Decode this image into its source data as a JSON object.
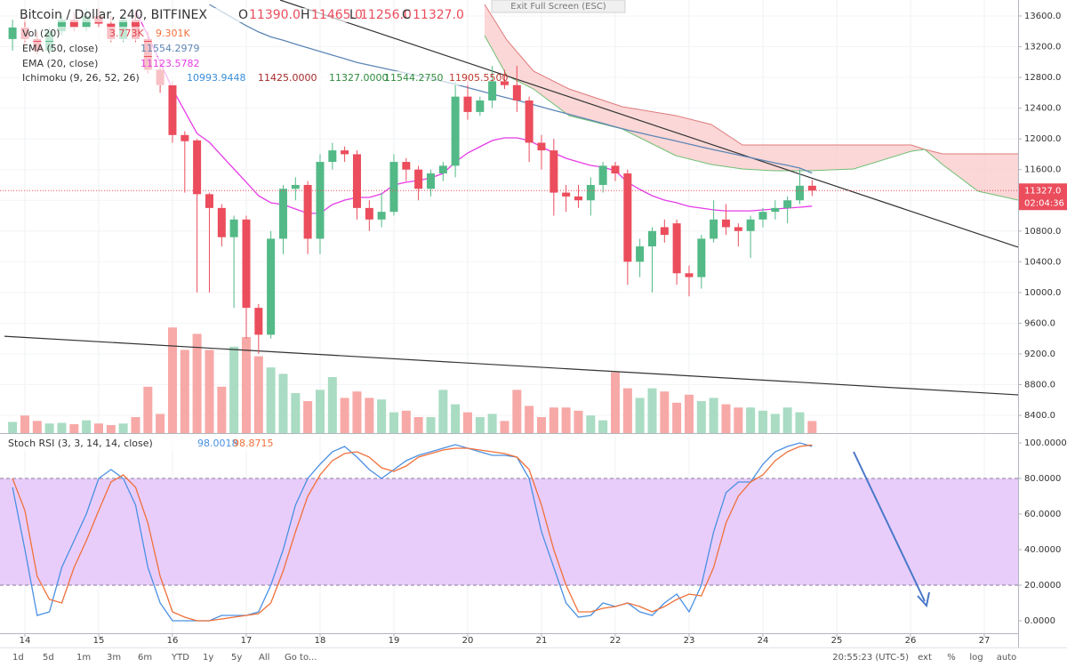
{
  "ui": {
    "tooltip": "Exit Full Screen (ESC)",
    "toolbar": [
      "1d",
      "5d",
      "1m",
      "3m",
      "6m",
      "YTD",
      "1y",
      "5y",
      "All",
      "Go to..."
    ],
    "clock": "20:55:23 (UTC-5)",
    "options": [
      "ext",
      "%",
      "log",
      "auto"
    ]
  },
  "chart_data": [
    {
      "type": "candlestick",
      "title": "Bitcoin / Dollar, 240, BITFINEX",
      "ohlc": [
        {
          "key": "O",
          "value": "11390.0"
        },
        {
          "key": "H",
          "value": "11465.0"
        },
        {
          "key": "L",
          "value": "11256.0"
        },
        {
          "key": "C",
          "value": "11327.0"
        }
      ],
      "up_color": "#53b987",
      "down_color": "#eb4d5c",
      "x": [
        13.833,
        14.0,
        14.167,
        14.333,
        14.5,
        14.667,
        14.833,
        15.0,
        15.167,
        15.333,
        15.5,
        15.667,
        15.833,
        16.0,
        16.167,
        16.333,
        16.5,
        16.667,
        16.833,
        17.0,
        17.167,
        17.333,
        17.5,
        17.667,
        17.833,
        18.0,
        18.167,
        18.333,
        18.5,
        18.667,
        18.833,
        19.0,
        19.167,
        19.333,
        19.5,
        19.667,
        19.833,
        20.0,
        20.167,
        20.333,
        20.5,
        20.667,
        20.833,
        21.0,
        21.167,
        21.333,
        21.5,
        21.667,
        21.833,
        22.0,
        22.167,
        22.333,
        22.5,
        22.667,
        22.833,
        23.0,
        23.167,
        23.333,
        23.5,
        23.667,
        23.833,
        24.0,
        24.167,
        24.333,
        24.5,
        24.667
      ],
      "open": [
        13300,
        13450,
        13300,
        13150,
        13400,
        13550,
        13450,
        13600,
        13500,
        13300,
        13550,
        13300,
        12900,
        12700,
        12050,
        11980,
        11280,
        11100,
        10720,
        10950,
        9800,
        9450,
        10700,
        11350,
        11400,
        10700,
        11700,
        11850,
        11800,
        11100,
        10950,
        11050,
        11700,
        11600,
        11350,
        11550,
        11650,
        12550,
        12350,
        12500,
        12750,
        12700,
        12500,
        11950,
        11850,
        11300,
        11250,
        11200,
        11400,
        11650,
        11550,
        10400,
        10600,
        10850,
        10900,
        10250,
        10200,
        10700,
        10950,
        10850,
        10800,
        10950,
        11050,
        11100,
        11200,
        11390
      ],
      "high": [
        13550,
        13600,
        13400,
        13450,
        13600,
        13650,
        13700,
        13700,
        13600,
        13600,
        13650,
        13400,
        13000,
        12750,
        12100,
        12000,
        11300,
        11150,
        11000,
        11000,
        9850,
        10800,
        11400,
        11500,
        11450,
        11800,
        11950,
        11900,
        11850,
        11200,
        11300,
        11800,
        11750,
        11650,
        11600,
        11700,
        12750,
        12800,
        12550,
        12950,
        12900,
        12950,
        12550,
        12050,
        12000,
        11400,
        11400,
        11500,
        11700,
        11700,
        11600,
        10700,
        10850,
        10950,
        10950,
        10350,
        10750,
        11200,
        11150,
        10900,
        11000,
        11100,
        11200,
        11250,
        11600,
        11465
      ],
      "low": [
        13150,
        13200,
        13100,
        13100,
        13350,
        13400,
        13400,
        13450,
        13250,
        13250,
        13250,
        12850,
        12600,
        11950,
        11300,
        10000,
        10000,
        10600,
        9800,
        9400,
        9200,
        9400,
        10500,
        11200,
        10500,
        10500,
        11600,
        11700,
        10950,
        10800,
        10850,
        11000,
        11450,
        11200,
        11250,
        11450,
        11500,
        12250,
        12300,
        12400,
        12650,
        12350,
        11700,
        11600,
        11000,
        11050,
        11100,
        11000,
        11300,
        11450,
        10100,
        10200,
        10000,
        10650,
        10100,
        9950,
        10050,
        10650,
        10750,
        10600,
        10450,
        10850,
        10950,
        10900,
        11150,
        11256
      ],
      "close": [
        13450,
        13300,
        13150,
        13400,
        13550,
        13450,
        13600,
        13500,
        13300,
        13550,
        13300,
        12900,
        12700,
        12050,
        11970,
        11280,
        11100,
        10720,
        10950,
        9800,
        9450,
        10700,
        11350,
        11400,
        10700,
        11700,
        11850,
        11800,
        11100,
        10950,
        11050,
        11700,
        11600,
        11350,
        11550,
        11650,
        12550,
        12350,
        12500,
        12750,
        12700,
        12500,
        11950,
        11850,
        11300,
        11250,
        11200,
        11400,
        11650,
        11550,
        10400,
        10600,
        10800,
        10750,
        10250,
        10200,
        10700,
        10950,
        10850,
        10800,
        10950,
        11050,
        11100,
        11200,
        11390,
        11327
      ],
      "countdown": "02:04:36",
      "volume": {
        "name": "Vol (20)",
        "legend": [
          "3.773K",
          "9.301K"
        ],
        "up_color": "#a9dcc3",
        "down_color": "#f7a9a7",
        "values": [
          3.5,
          5.5,
          3.8,
          3,
          3.2,
          2.8,
          4,
          3,
          2.5,
          3,
          5,
          14.5,
          6,
          33,
          26,
          31,
          26,
          14.5,
          27,
          30,
          24,
          20.5,
          18.5,
          12.5,
          10,
          13.5,
          17.5,
          11,
          13,
          11,
          10.5,
          6.5,
          7,
          5,
          5,
          13.5,
          9,
          6.5,
          5,
          6,
          3.8,
          13.5,
          8.5,
          5,
          8,
          8,
          7,
          5.5,
          4,
          19,
          14,
          11,
          14,
          13,
          9.5,
          12,
          10,
          11,
          9,
          8,
          8,
          7,
          6,
          8,
          6.5,
          3.773
        ]
      },
      "series": [
        {
          "name": "EMA (50, close)",
          "color": "#5d86b5",
          "values": [
            null,
            null,
            null,
            null,
            null,
            null,
            null,
            null,
            null,
            null,
            null,
            null,
            null,
            null,
            null,
            null,
            13750,
            13658,
            13565,
            13473,
            13392,
            13328,
            13283,
            13234,
            13185,
            13137,
            13090,
            13044,
            12995,
            12960,
            12924,
            12891,
            12855,
            12820,
            12784,
            12748,
            12710,
            12668,
            12626,
            12583,
            12541,
            12502,
            12460,
            12416,
            12372,
            12330,
            12286,
            12245,
            12201,
            12157,
            12115,
            12078,
            12041,
            12006,
            11969,
            11932,
            11895,
            11858,
            11826,
            11791,
            11755,
            11720,
            11686,
            11655,
            11620,
            11554.2979
          ]
        },
        {
          "name": "EMA (20, close)",
          "color": "#e63ce6",
          "values": [
            null,
            null,
            null,
            null,
            null,
            null,
            null,
            null,
            null,
            null,
            13670,
            13345,
            12998,
            12650,
            12360,
            12070,
            11955,
            11780,
            11608,
            11435,
            11260,
            11168,
            11145,
            11087,
            11030,
            11030,
            11145,
            11203,
            11237,
            11237,
            11284,
            11400,
            11435,
            11458,
            11492,
            11550,
            11700,
            11816,
            11897,
            11978,
            12013,
            12013,
            11978,
            11897,
            11816,
            11747,
            11700,
            11654,
            11631,
            11585,
            11435,
            11342,
            11260,
            11203,
            11168,
            11121,
            11098,
            11075,
            11063,
            11063,
            11063,
            11075,
            11087,
            11098,
            11110,
            11123.5782
          ]
        }
      ],
      "ichimoku": {
        "name": "Ichimoku (9, 26, 52, 26)",
        "legend": [
          {
            "text": "10993.9448",
            "color": "#3a8fd9"
          },
          {
            "text": "11425.0000",
            "color": "#a52a2a"
          },
          {
            "text": "11327.0000",
            "color": "#2e8b3e"
          },
          {
            "text": "11544.2750",
            "color": "#2e8b3e"
          },
          {
            "text": "11905.5500",
            "color": "#c0392b"
          }
        ],
        "cloud_color": "#f9c9c9",
        "span_a_color": "#6fbf73",
        "span_b_color": "#e07b7b",
        "x": [
          20.229,
          20.53,
          20.892,
          21.373,
          22.096,
          22.819,
          23.301,
          23.723,
          24.145,
          24.627,
          25.229,
          26.012,
          26.193,
          26.434,
          26.916,
          27.458
        ],
        "span_a": [
          13345,
          12824,
          12650,
          12303,
          12129,
          11782,
          11666,
          11608,
          11585,
          11585,
          11608,
          11840,
          11863,
          11666,
          11319,
          11203
        ],
        "span_b": [
          13751,
          13287,
          12882,
          12650,
          12419,
          12303,
          12187,
          11921,
          11921,
          11921,
          11921,
          11921,
          11863,
          11805,
          11805,
          11805
        ]
      },
      "trendlines": [
        {
          "x": [
            17.458,
            27.458
          ],
          "y": [
            13808,
            10590
          ]
        },
        {
          "x": [
            13.723,
            27.458
          ],
          "y": [
            9430,
            8667
          ]
        }
      ],
      "xlim": [
        13.663,
        27.458
      ],
      "xticks": [
        14,
        15,
        16,
        17,
        18,
        19,
        20,
        21,
        22,
        23,
        24,
        25,
        26,
        27
      ],
      "ylim": [
        8169,
        13808
      ],
      "yticks": [
        {
          "value": 8400,
          "label": "8400.0"
        },
        {
          "value": 8800,
          "label": "8800.0"
        },
        {
          "value": 9200,
          "label": "9200.0"
        },
        {
          "value": 9600,
          "label": "9600.0"
        },
        {
          "value": 10000,
          "label": "10000.0"
        },
        {
          "value": 10400,
          "label": "10400.0"
        },
        {
          "value": 10800,
          "label": "10800.0"
        },
        {
          "value": 11200,
          "label": "11200.0"
        },
        {
          "value": 11600,
          "label": "11600.0"
        },
        {
          "value": 12000,
          "label": "12000.0"
        },
        {
          "value": 12400,
          "label": "12400.0"
        },
        {
          "value": 12800,
          "label": "12800.0"
        },
        {
          "value": 13200,
          "label": "13200.0"
        },
        {
          "value": 13600,
          "label": "13600.0"
        }
      ],
      "grid": true
    },
    {
      "type": "line",
      "title": "Stoch RSI (3, 3, 14, 14, close)",
      "series": [
        {
          "color": "#4a90e2",
          "values": [
            75,
            40,
            3,
            5,
            30,
            45,
            60,
            80,
            85,
            80,
            65,
            30,
            10,
            0,
            0,
            0,
            0,
            3,
            3,
            3,
            5,
            20,
            40,
            65,
            80,
            88,
            95,
            98,
            92,
            85,
            80,
            85,
            90,
            93,
            95,
            97,
            99,
            97,
            95,
            93,
            93,
            92,
            80,
            50,
            30,
            10,
            2,
            3,
            10,
            8,
            10,
            5,
            3,
            10,
            15,
            5,
            20,
            50,
            72,
            78,
            78,
            88,
            95,
            98,
            100,
            98.0018
          ]
        },
        {
          "color": "#f0703a",
          "values": [
            80,
            62,
            25,
            12,
            10,
            30,
            45,
            62,
            78,
            82,
            75,
            55,
            25,
            5,
            2,
            0,
            0,
            1,
            2,
            3,
            4,
            10,
            28,
            50,
            70,
            82,
            90,
            94,
            95,
            92,
            86,
            84,
            87,
            92,
            94,
            96,
            97,
            97,
            96,
            95,
            94,
            92,
            85,
            65,
            40,
            20,
            5,
            5,
            7,
            8,
            10,
            8,
            5,
            8,
            12,
            15,
            14,
            30,
            55,
            70,
            78,
            82,
            90,
            95,
            98,
            98.8715
          ]
        }
      ],
      "band": [
        20,
        80
      ],
      "band_color": "#e8cdfb",
      "ylim": [
        -7,
        104
      ],
      "yticks": [
        {
          "value": 0,
          "label": "0.0000"
        },
        {
          "value": 20,
          "label": "20.0000"
        },
        {
          "value": 40,
          "label": "40.0000"
        },
        {
          "value": 60,
          "label": "60.0000"
        },
        {
          "value": 80,
          "label": "80.0000"
        },
        {
          "value": 100,
          "label": "100.0000"
        }
      ]
    }
  ]
}
